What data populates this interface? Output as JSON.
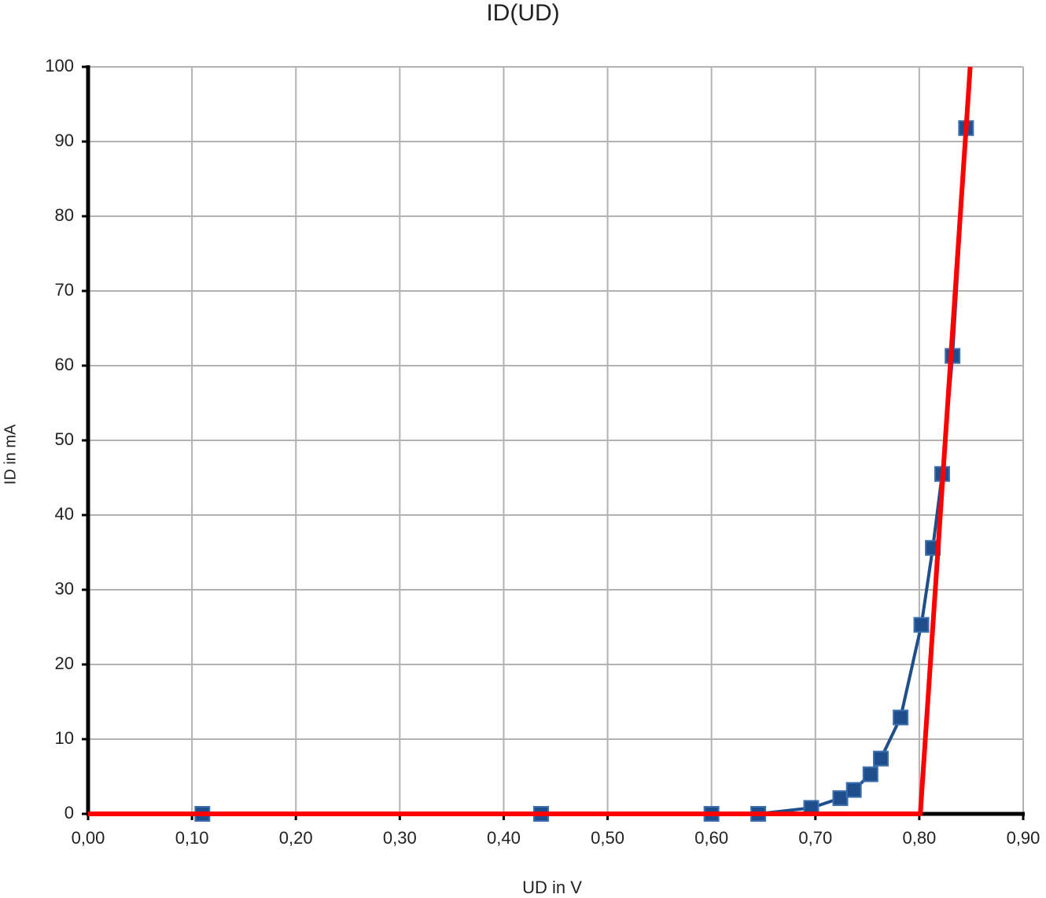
{
  "chart_data": {
    "type": "scatter",
    "title": "ID(UD)",
    "x_label": "UD in V",
    "y_label": "ID in mA",
    "xlim": [
      0,
      0.9
    ],
    "ylim": [
      0,
      100
    ],
    "xticks": [
      {
        "value": 0,
        "label": "0,00"
      },
      {
        "value": 0.1,
        "label": "0,10"
      },
      {
        "value": 0.2,
        "label": "0,20"
      },
      {
        "value": 0.3,
        "label": "0,30"
      },
      {
        "value": 0.4,
        "label": "0,40"
      },
      {
        "value": 0.5,
        "label": "0,50"
      },
      {
        "value": 0.6,
        "label": "0,60"
      },
      {
        "value": 0.7,
        "label": "0,70"
      },
      {
        "value": 0.8,
        "label": "0,80"
      },
      {
        "value": 0.9,
        "label": "0,90"
      }
    ],
    "yticks": [
      0,
      10,
      20,
      30,
      40,
      50,
      60,
      70,
      80,
      90,
      100
    ],
    "grid": true,
    "series": [
      {
        "color": "#1f4e8c",
        "markers": true,
        "x": [
          0.11,
          0.436,
          0.6,
          0.645,
          0.696,
          0.724,
          0.737,
          0.753,
          0.763,
          0.782,
          0.802,
          0.813,
          0.822,
          0.832,
          0.845
        ],
        "values": [
          0,
          0,
          0,
          0,
          0.8,
          2.1,
          3.2,
          5.3,
          7.4,
          12.9,
          25.3,
          35.6,
          45.5,
          61.3,
          91.8
        ]
      },
      {
        "color": "#ff0000",
        "markers": false,
        "x": [
          0,
          0.801,
          0.849
        ],
        "values": [
          0,
          0,
          100
        ]
      }
    ]
  }
}
